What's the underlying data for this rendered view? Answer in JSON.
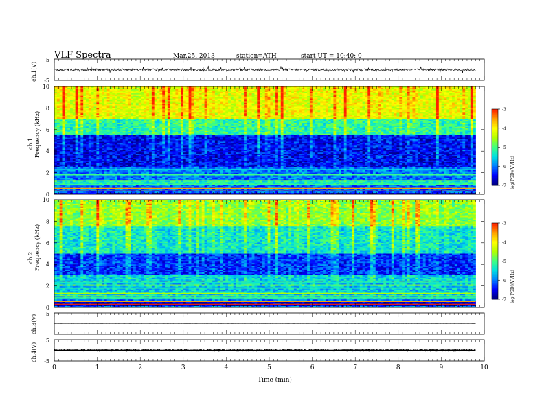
{
  "header": {
    "title": "VLF  Spectra",
    "date": "Mar.25, 2013",
    "station": "station=ATH",
    "start": "start  UT  =   10:40: 0"
  },
  "chart_data": [
    {
      "type": "line",
      "name": "ch1-waveform",
      "ylabel": "ch.1(V)",
      "ylim": [
        -5,
        5
      ],
      "xlim": [
        0,
        10
      ],
      "baseline": 0,
      "amplitude": 1.0
    },
    {
      "type": "heatmap",
      "name": "ch1-spectrogram",
      "ylabel_top": "ch.1",
      "ylabel": "Frequency  (kHz)",
      "ylim": [
        0,
        10
      ],
      "xlim": [
        0,
        10
      ],
      "data_end_min": 9.8,
      "colorbar": {
        "label": "log(PSD)(V²/Hz)",
        "ticks": [
          "-3",
          "-4",
          "-5",
          "-6",
          "-7"
        ],
        "range": [
          -7,
          -3
        ]
      },
      "bands": [
        {
          "f": [
            0,
            0.8
          ],
          "level": -6.8,
          "note": "dark blue with red/orange narrow lines"
        },
        {
          "f": [
            0.8,
            2.5
          ],
          "level": -6.0,
          "note": "cyan/blue with green horizontal lines"
        },
        {
          "f": [
            2.5,
            5.5
          ],
          "level": -6.6,
          "note": "deep blue"
        },
        {
          "f": [
            5.5,
            7.0
          ],
          "level": -5.3,
          "note": "green/cyan"
        },
        {
          "f": [
            7.0,
            10
          ],
          "level": -4.3,
          "note": "yellow/orange/red"
        }
      ]
    },
    {
      "type": "heatmap",
      "name": "ch2-spectrogram",
      "ylabel_top": "ch.2",
      "ylabel": "Frequency  (kHz)",
      "ylim": [
        0,
        10
      ],
      "xlim": [
        0,
        10
      ],
      "data_end_min": 9.8,
      "colorbar": {
        "label": "log(PSD)(V²/Hz)",
        "ticks": [
          "-3",
          "-4",
          "-5",
          "-6",
          "-7"
        ],
        "range": [
          -7,
          -3
        ]
      },
      "bands": [
        {
          "f": [
            0,
            0.8
          ],
          "level": -6.7,
          "note": "blue with red/orange narrow lines"
        },
        {
          "f": [
            0.8,
            3.0
          ],
          "level": -5.6,
          "note": "cyan/green"
        },
        {
          "f": [
            3.0,
            5.0
          ],
          "level": -6.4,
          "note": "blue"
        },
        {
          "f": [
            5.0,
            7.5
          ],
          "level": -5.5,
          "note": "cyan/green"
        },
        {
          "f": [
            7.5,
            10
          ],
          "level": -4.8,
          "note": "green/yellow with orange"
        }
      ]
    },
    {
      "type": "line",
      "name": "ch3-waveform",
      "ylabel": "ch.3(V)",
      "ylim": [
        -5,
        5
      ],
      "xlim": [
        0,
        10
      ],
      "baseline": 0,
      "amplitude": 0.05
    },
    {
      "type": "line",
      "name": "ch4-waveform",
      "ylabel": "ch.4(V)",
      "ylim": [
        -5,
        5
      ],
      "xlim": [
        0,
        10
      ],
      "baseline": 0,
      "amplitude": 0.4
    }
  ],
  "xaxis": {
    "label": "Time  (min)",
    "ticks": [
      "0",
      "1",
      "2",
      "3",
      "4",
      "5",
      "6",
      "7",
      "8",
      "9",
      "10"
    ]
  },
  "wave_ticks": {
    "top": "5",
    "bottom": "-5"
  },
  "freq_ticks": [
    "0",
    "2",
    "4",
    "6",
    "8",
    "10"
  ],
  "colors": {
    "colormap": [
      "#000080",
      "#0000ff",
      "#0080ff",
      "#00e0e0",
      "#40ff80",
      "#b0ff00",
      "#ffff00",
      "#ffa000",
      "#ff2000",
      "#ffffff"
    ]
  }
}
